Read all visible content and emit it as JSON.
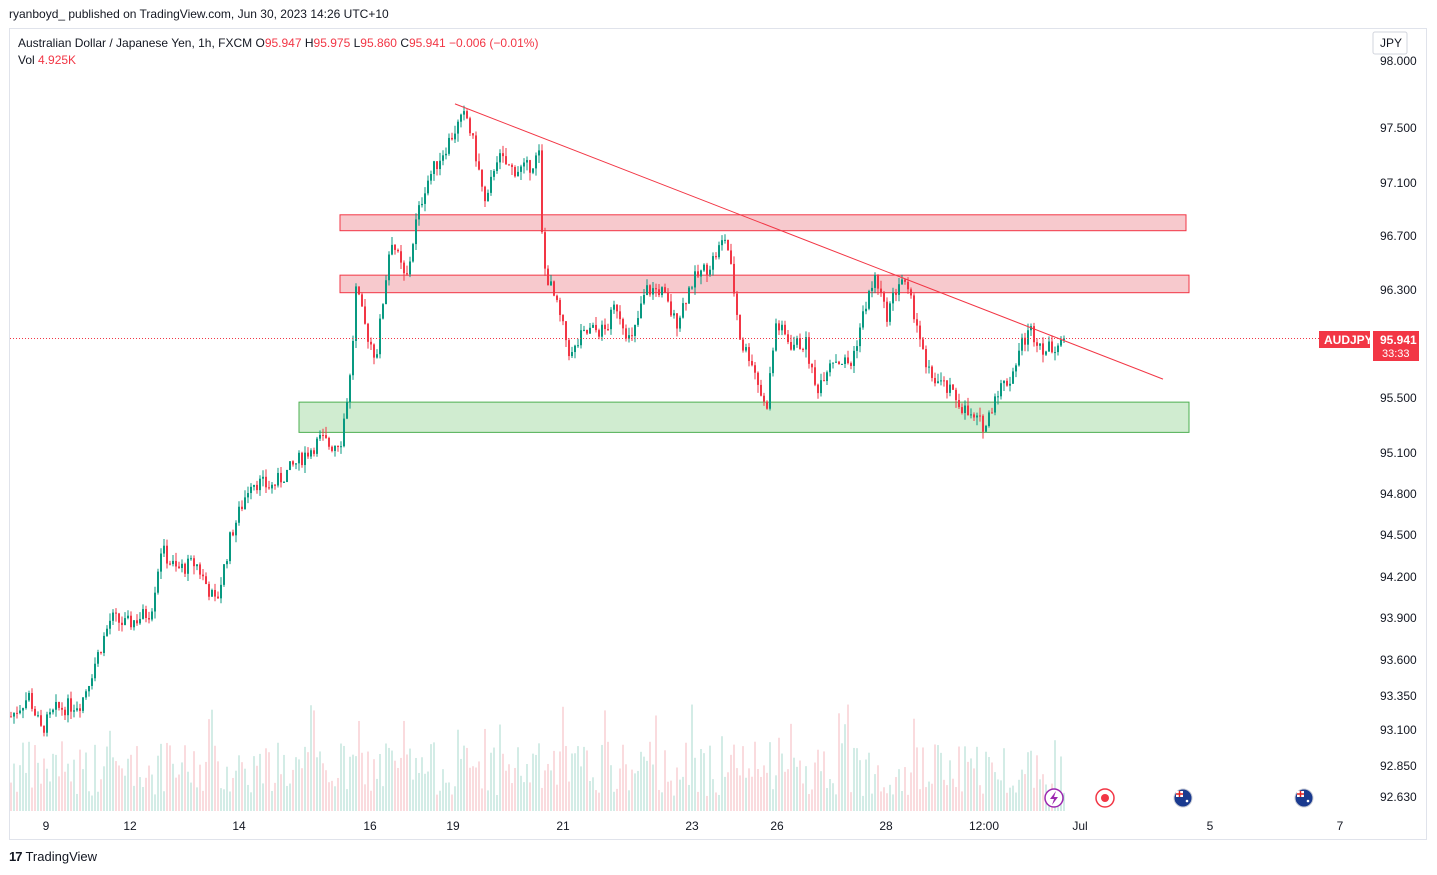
{
  "header": {
    "caption": "ryanboyd_ published on TradingView.com, Jun 30, 2023 14:26 UTC+10"
  },
  "legend": {
    "symbol_line": "Australian Dollar / Japanese Yen, 1h, FXCM",
    "o_label": "O",
    "o_value": "95.947",
    "h_label": "H",
    "h_value": "95.975",
    "l_label": "L",
    "l_value": "95.860",
    "c_label": "C",
    "c_value": "95.941",
    "change": "−0.006 (−0.01%)",
    "vol_label": "Vol",
    "vol_value": "4.925K"
  },
  "footer": {
    "brand": "TradingView",
    "logo_text": "17"
  },
  "colors": {
    "up": "#089981",
    "down": "#f23645",
    "resistance_fill": "#f7c6ca",
    "resistance_stroke": "#f23645",
    "support_fill": "#cdebcd",
    "support_stroke": "#4caf50",
    "trendline": "#f23645",
    "price_line": "#f23645",
    "vol_up": "#a7d8cd",
    "vol_down": "#f5b7bd"
  },
  "chart_data": {
    "type": "candlestick",
    "symbol": "AUDJPY",
    "timeframe": "1h",
    "currency_label": "JPY",
    "last_price": "95.941",
    "countdown": "33:33",
    "y_ticks": [
      "98.000",
      "97.500",
      "97.100",
      "96.700",
      "96.300",
      "95.500",
      "95.100",
      "94.800",
      "94.500",
      "94.200",
      "93.900",
      "93.600",
      "93.350",
      "93.100",
      "92.850",
      "92.630"
    ],
    "y_range": [
      92.55,
      98.1
    ],
    "x_ticks": [
      "9",
      "12",
      "14",
      "16",
      "19",
      "21",
      "23",
      "26",
      "28",
      "12:00",
      "Jul",
      "5",
      "7"
    ],
    "path": [
      [
        0,
        93.2
      ],
      [
        18,
        93.35
      ],
      [
        30,
        93.1
      ],
      [
        45,
        93.25
      ],
      [
        70,
        93.3
      ],
      [
        85,
        93.6
      ],
      [
        100,
        93.9
      ],
      [
        115,
        93.85
      ],
      [
        140,
        93.95
      ],
      [
        150,
        94.4
      ],
      [
        165,
        94.25
      ],
      [
        185,
        94.3
      ],
      [
        205,
        94.0
      ],
      [
        220,
        94.5
      ],
      [
        240,
        94.9
      ],
      [
        260,
        94.85
      ],
      [
        275,
        94.95
      ],
      [
        295,
        95.1
      ],
      [
        310,
        95.2
      ],
      [
        320,
        95.15
      ],
      [
        330,
        95.2
      ],
      [
        340,
        95.7
      ],
      [
        345,
        96.3
      ],
      [
        355,
        96.0
      ],
      [
        365,
        95.8
      ],
      [
        380,
        96.7
      ],
      [
        395,
        96.35
      ],
      [
        405,
        96.8
      ],
      [
        415,
        97.1
      ],
      [
        430,
        97.3
      ],
      [
        445,
        97.5
      ],
      [
        455,
        97.6
      ],
      [
        465,
        97.3
      ],
      [
        475,
        96.9
      ],
      [
        485,
        97.3
      ],
      [
        500,
        97.2
      ],
      [
        515,
        97.2
      ],
      [
        528,
        97.3
      ],
      [
        532,
        96.5
      ],
      [
        545,
        96.2
      ],
      [
        560,
        95.8
      ],
      [
        570,
        95.95
      ],
      [
        580,
        96.0
      ],
      [
        595,
        96.0
      ],
      [
        605,
        96.2
      ],
      [
        620,
        95.9
      ],
      [
        635,
        96.3
      ],
      [
        650,
        96.3
      ],
      [
        665,
        96.05
      ],
      [
        680,
        96.35
      ],
      [
        700,
        96.5
      ],
      [
        715,
        96.7
      ],
      [
        722,
        96.35
      ],
      [
        730,
        95.9
      ],
      [
        740,
        95.8
      ],
      [
        755,
        95.4
      ],
      [
        765,
        96.05
      ],
      [
        780,
        95.9
      ],
      [
        795,
        95.9
      ],
      [
        805,
        95.55
      ],
      [
        820,
        95.8
      ],
      [
        840,
        95.75
      ],
      [
        855,
        96.2
      ],
      [
        865,
        96.4
      ],
      [
        875,
        96.1
      ],
      [
        890,
        96.4
      ],
      [
        905,
        96.1
      ],
      [
        915,
        95.7
      ],
      [
        930,
        95.6
      ],
      [
        945,
        95.5
      ],
      [
        960,
        95.35
      ],
      [
        975,
        95.3
      ],
      [
        985,
        95.55
      ],
      [
        1000,
        95.65
      ],
      [
        1010,
        95.9
      ],
      [
        1020,
        96.0
      ],
      [
        1035,
        95.85
      ],
      [
        1045,
        95.9
      ],
      [
        1053,
        95.94
      ]
    ],
    "zones": [
      {
        "name": "resistance-zone-upper",
        "kind": "resistance",
        "top": 96.86,
        "bottom": 96.74,
        "x_start": 340,
        "x_end": 1186
      },
      {
        "name": "resistance-zone-lower",
        "kind": "resistance",
        "top": 96.41,
        "bottom": 96.28,
        "x_start": 340,
        "x_end": 1189
      },
      {
        "name": "support-zone",
        "kind": "support",
        "top": 95.47,
        "bottom": 95.25,
        "x_start": 299,
        "x_end": 1189
      }
    ],
    "trendline": {
      "start": [
        455,
        97.68
      ],
      "end": [
        1163,
        95.64
      ]
    },
    "events": [
      "lightning-icon",
      "record-icon",
      "australia-flag-icon",
      "australia-flag-icon"
    ]
  }
}
